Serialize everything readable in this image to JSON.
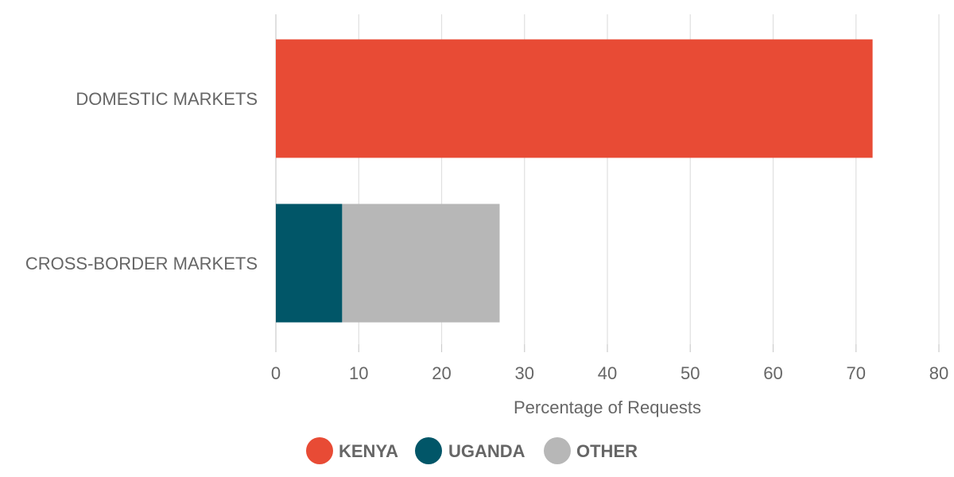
{
  "chart_data": {
    "type": "bar",
    "orientation": "horizontal",
    "stacked": true,
    "categories": [
      "DOMESTIC MARKETS",
      "CROSS-BORDER MARKETS"
    ],
    "series": [
      {
        "name": "KENYA",
        "color": "#e84b35",
        "values": [
          72,
          0
        ]
      },
      {
        "name": "UGANDA",
        "color": "#015668",
        "values": [
          0,
          8
        ]
      },
      {
        "name": "OTHER",
        "color": "#b7b7b7",
        "values": [
          0,
          19
        ]
      }
    ],
    "xlabel": "Percentage of Requests",
    "ylabel": "",
    "title": "",
    "xlim": [
      0,
      80
    ],
    "xticks": [
      0,
      10,
      20,
      30,
      40,
      50,
      60,
      70,
      80
    ],
    "grid": true,
    "legend_position": "bottom-center"
  }
}
